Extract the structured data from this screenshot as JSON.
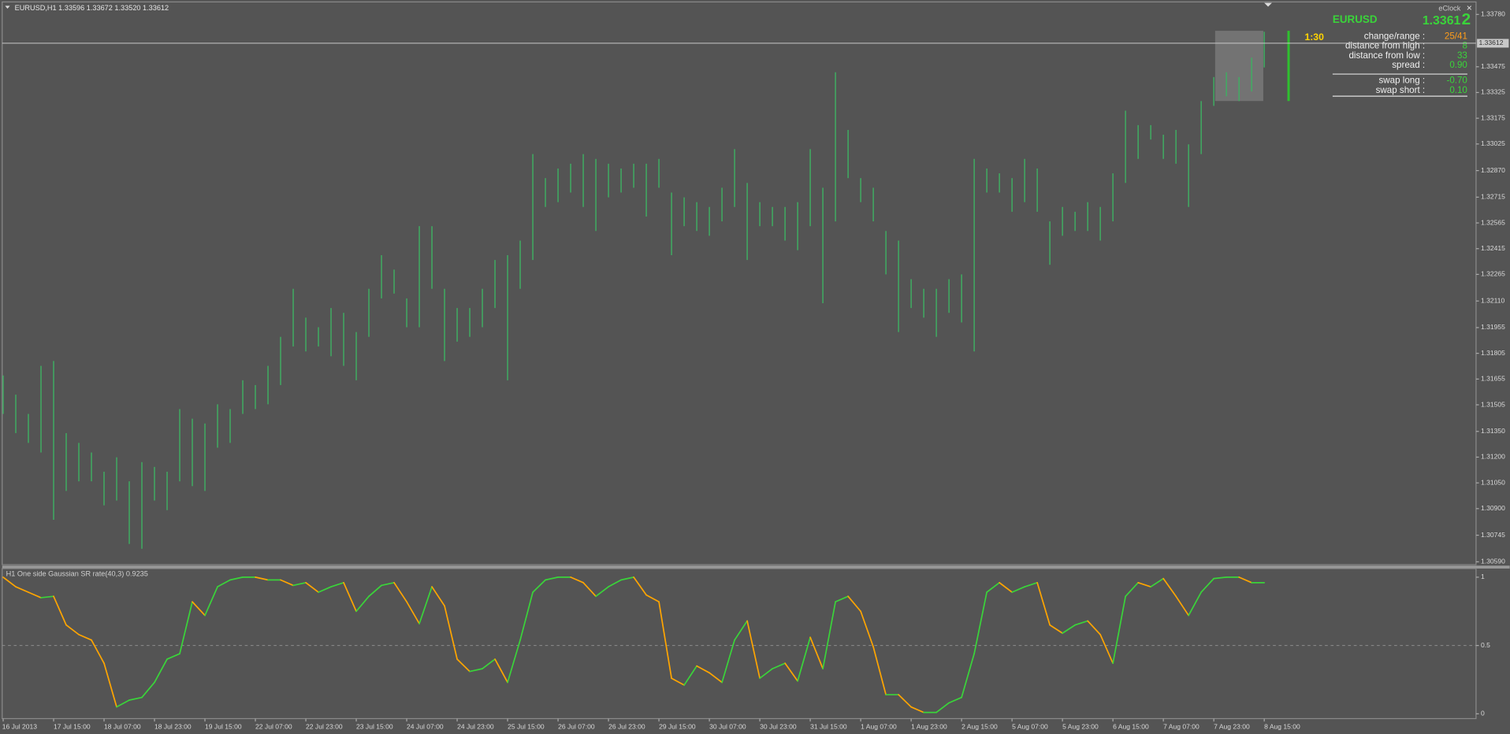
{
  "chart_data": [
    {
      "type": "bar",
      "title": "EURUSD,H1  1.33596 1.33672 1.33520 1.33612",
      "color": "#3fae62",
      "high": [
        1.31676,
        1.31564,
        1.31452,
        1.31732,
        1.3176,
        1.3134,
        1.31283,
        1.31227,
        1.31115,
        1.31199,
        1.31059,
        1.31171,
        1.31143,
        1.31115,
        1.3148,
        1.31424,
        1.31396,
        1.31508,
        1.3148,
        1.31648,
        1.3162,
        1.31732,
        1.31901,
        1.32181,
        1.32013,
        1.31957,
        1.32069,
        1.32041,
        1.31929,
        1.32181,
        1.32377,
        1.32293,
        1.32125,
        1.32546,
        1.32546,
        1.32181,
        1.32069,
        1.32069,
        1.32181,
        1.32349,
        1.32377,
        1.32462,
        1.32966,
        1.32826,
        1.32882,
        1.3291,
        1.32966,
        1.32938,
        1.3291,
        1.32882,
        1.3291,
        1.3291,
        1.32938,
        1.32742,
        1.32714,
        1.32686,
        1.32658,
        1.3277,
        1.32995,
        1.32798,
        1.32686,
        1.32658,
        1.32658,
        1.32686,
        1.32995,
        1.3277,
        1.33443,
        1.33107,
        1.32826,
        1.3277,
        1.32518,
        1.32462,
        1.32237,
        1.32181,
        1.32181,
        1.32237,
        1.32265,
        1.32938,
        1.32882,
        1.32854,
        1.32826,
        1.32938,
        1.32882,
        1.32574,
        1.32658,
        1.3263,
        1.32686,
        1.32658,
        1.32854,
        1.33219,
        1.33135,
        1.33135,
        1.33079,
        1.33107,
        1.33023,
        1.33275,
        1.33415,
        1.33443,
        1.33415,
        1.33528,
        1.33679
      ],
      "low": [
        1.31452,
        1.3134,
        1.31283,
        1.31227,
        1.30835,
        1.31003,
        1.31059,
        1.31059,
        1.30919,
        1.30947,
        1.30694,
        1.30666,
        1.30947,
        1.30891,
        1.31059,
        1.31031,
        1.31003,
        1.31255,
        1.31283,
        1.31452,
        1.3148,
        1.31508,
        1.3162,
        1.31845,
        1.31816,
        1.31845,
        1.31788,
        1.31732,
        1.31648,
        1.31901,
        1.32125,
        1.32153,
        1.31957,
        1.31957,
        1.32181,
        1.3176,
        1.31873,
        1.31901,
        1.31957,
        1.32069,
        1.31648,
        1.32181,
        1.32349,
        1.32658,
        1.32686,
        1.32742,
        1.32658,
        1.32518,
        1.32714,
        1.32742,
        1.3277,
        1.32602,
        1.3277,
        1.32377,
        1.32546,
        1.32518,
        1.3249,
        1.32574,
        1.32658,
        1.32349,
        1.32546,
        1.32546,
        1.32462,
        1.32406,
        1.32546,
        1.32097,
        1.32574,
        1.32826,
        1.32686,
        1.32574,
        1.32265,
        1.31929,
        1.32069,
        1.32013,
        1.31901,
        1.32041,
        1.31985,
        1.31816,
        1.32742,
        1.32742,
        1.3263,
        1.32686,
        1.3263,
        1.32321,
        1.3249,
        1.32518,
        1.32518,
        1.32462,
        1.32574,
        1.32798,
        1.32938,
        1.33051,
        1.32938,
        1.3291,
        1.32658,
        1.32966,
        1.33247,
        1.33303,
        1.33275,
        1.33331,
        1.33471
      ],
      "ylim": [
        1.3059,
        1.3378
      ],
      "yticks": [
        {
          "value": 1.3378,
          "label": "1.33780"
        },
        1.33475,
        1.33325,
        1.33175,
        1.33025,
        {
          "value": 1.3287,
          "label": "1.32870"
        },
        1.32715,
        1.32565,
        1.32415,
        1.32265,
        {
          "value": 1.3211,
          "label": "1.32110"
        },
        1.31955,
        1.31805,
        1.31655,
        1.31505,
        {
          "value": 1.3135,
          "label": "1.31350"
        },
        {
          "value": 1.312,
          "label": "1.31200"
        },
        {
          "value": 1.3105,
          "label": "1.31050"
        },
        {
          "value": 1.309,
          "label": "1.30900"
        },
        1.30745,
        {
          "value": 1.3059,
          "label": "1.30590"
        }
      ],
      "current_price": 1.33612,
      "time_labels": [
        "16 Jul 2013",
        "17 Jul 15:00",
        "18 Jul 07:00",
        "18 Jul 23:00",
        "19 Jul 15:00",
        "22 Jul 07:00",
        "22 Jul 23:00",
        "23 Jul 15:00",
        "24 Jul 07:00",
        "24 Jul 23:00",
        "25 Jul 15:00",
        "26 Jul 07:00",
        "26 Jul 23:00",
        "29 Jul 15:00",
        "30 Jul 07:00",
        "30 Jul 23:00",
        "31 Jul 15:00",
        "1 Aug 07:00",
        "1 Aug 23:00",
        "2 Aug 15:00",
        "5 Aug 07:00",
        "5 Aug 23:00",
        "6 Aug 15:00",
        "7 Aug 07:00",
        "7 Aug 23:00",
        "8 Aug 15:00"
      ]
    },
    {
      "type": "line",
      "title": "H1 One side Gaussian SR rate(40,3) 0.9235",
      "rising_color": "#3ad43a",
      "falling_color": "#ffa500",
      "values": [
        1.0,
        0.93,
        0.89,
        0.85,
        0.86,
        0.65,
        0.58,
        0.54,
        0.37,
        0.05,
        0.1,
        0.12,
        0.23,
        0.4,
        0.44,
        0.82,
        0.72,
        0.93,
        0.98,
        1.0,
        1.0,
        0.98,
        0.98,
        0.94,
        0.96,
        0.89,
        0.93,
        0.96,
        0.75,
        0.86,
        0.94,
        0.96,
        0.82,
        0.66,
        0.93,
        0.79,
        0.4,
        0.31,
        0.33,
        0.4,
        0.23,
        0.54,
        0.89,
        0.98,
        1.0,
        1.0,
        0.96,
        0.86,
        0.93,
        0.98,
        1.0,
        0.87,
        0.82,
        0.26,
        0.21,
        0.35,
        0.3,
        0.23,
        0.54,
        0.68,
        0.26,
        0.33,
        0.37,
        0.24,
        0.56,
        0.33,
        0.82,
        0.86,
        0.75,
        0.49,
        0.14,
        0.14,
        0.05,
        0.01,
        0.01,
        0.08,
        0.12,
        0.44,
        0.89,
        0.96,
        0.89,
        0.93,
        0.96,
        0.65,
        0.59,
        0.65,
        0.68,
        0.58,
        0.37,
        0.86,
        0.96,
        0.93,
        0.99,
        0.86,
        0.72,
        0.89,
        0.99,
        1.0,
        1.0,
        0.96,
        0.96
      ],
      "ylim": [
        0,
        1
      ],
      "yticks": [
        0,
        0.5,
        1
      ],
      "level": 0.5
    }
  ],
  "eclock": {
    "title": "eClock",
    "close": "×",
    "symbol": "EURUSD",
    "price_main": "1.3361",
    "price_last": "2",
    "timer": "1:30",
    "rows": [
      [
        "change/range :",
        "25/41"
      ],
      [
        "distance from high :",
        "8"
      ],
      [
        "distance from low :",
        "33"
      ],
      [
        "spread :",
        "0.90"
      ]
    ],
    "swap_rows": [
      [
        "swap long :",
        "-0.70"
      ],
      [
        "swap short :",
        "0.10"
      ]
    ]
  }
}
